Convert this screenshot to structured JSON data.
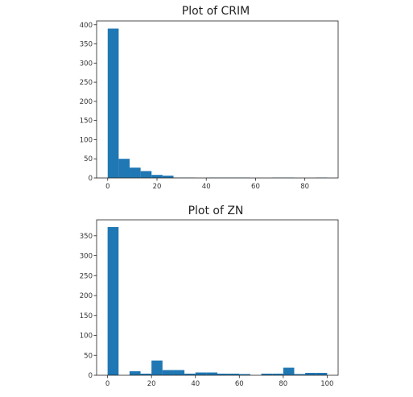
{
  "chart_data": [
    {
      "type": "bar",
      "title": "Plot of CRIM",
      "xlabel": "",
      "ylabel": "",
      "bin_edges": [
        0,
        4.45,
        8.9,
        13.35,
        17.8,
        22.25,
        26.7,
        31.15,
        35.6,
        40.05,
        44.5,
        48.95,
        53.4,
        57.85,
        62.3,
        66.75,
        71.2,
        75.65,
        80.1,
        84.55,
        89.0
      ],
      "values": [
        390,
        50,
        27,
        18,
        8,
        6,
        1,
        1,
        0,
        1,
        1,
        1,
        1,
        0,
        0,
        1,
        1,
        0,
        0,
        1
      ],
      "xlim": [
        -4.5,
        93.5
      ],
      "ylim": [
        0,
        410
      ],
      "xticks": [
        0,
        20,
        40,
        60,
        80
      ],
      "yticks": [
        0,
        50,
        100,
        150,
        200,
        250,
        300,
        350,
        400
      ],
      "bar_color": "#1f77b4",
      "grid": false
    },
    {
      "type": "bar",
      "title": "Plot of ZN",
      "xlabel": "",
      "ylabel": "",
      "bin_edges": [
        0,
        5,
        10,
        15,
        20,
        25,
        30,
        35,
        40,
        45,
        50,
        55,
        60,
        65,
        70,
        75,
        80,
        85,
        90,
        95,
        100
      ],
      "values": [
        372,
        0,
        10,
        4,
        37,
        13,
        13,
        4,
        7,
        7,
        4,
        4,
        3,
        0,
        4,
        4,
        19,
        3,
        6,
        6
      ],
      "xlim": [
        -5,
        105
      ],
      "ylim": [
        0,
        390
      ],
      "xticks": [
        0,
        20,
        40,
        60,
        80,
        100
      ],
      "yticks": [
        0,
        50,
        100,
        150,
        200,
        250,
        300,
        350
      ],
      "bar_color": "#1f77b4",
      "grid": false
    }
  ]
}
